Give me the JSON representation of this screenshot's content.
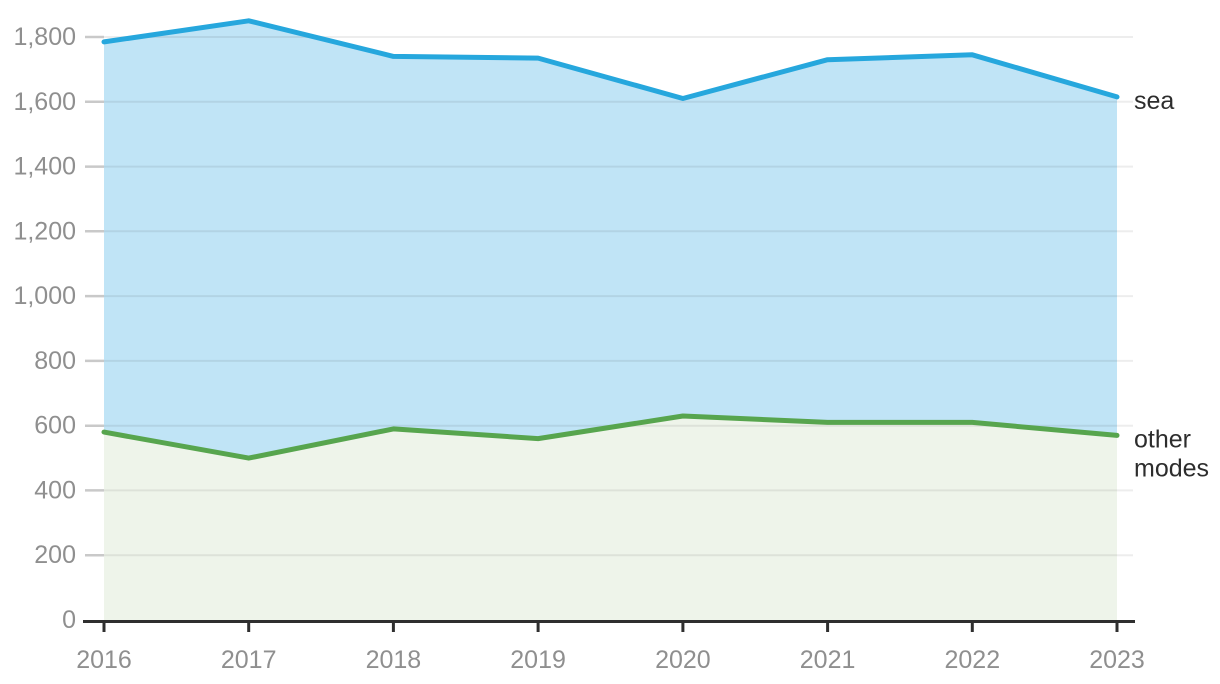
{
  "chart_data": {
    "type": "area",
    "title": "",
    "x": [
      2016,
      2017,
      2018,
      2019,
      2020,
      2021,
      2022,
      2023
    ],
    "xtick_labels": [
      "2016",
      "2017",
      "2018",
      "2019",
      "2020",
      "2021",
      "2022",
      "2023"
    ],
    "series": [
      {
        "name": "sea",
        "label_lines": [
          "sea"
        ],
        "values": [
          1785,
          1850,
          1740,
          1735,
          1610,
          1730,
          1745,
          1615
        ],
        "line_color": "#26a7dd",
        "fill_color": "#c0e4f6"
      },
      {
        "name": "other modes",
        "label_lines": [
          "other",
          "modes"
        ],
        "values": [
          580,
          500,
          590,
          560,
          630,
          610,
          610,
          570
        ],
        "line_color": "#57a54e",
        "fill_color": "#eef4ea"
      }
    ],
    "ylim": [
      0,
      1800
    ],
    "yticks": [
      0,
      200,
      400,
      600,
      800,
      1000,
      1200,
      1400,
      1600,
      1800
    ],
    "ytick_labels": [
      "0",
      "200",
      "400",
      "600",
      "800",
      "1,000",
      "1,200",
      "1,400",
      "1,600",
      "1,800"
    ],
    "grid": true,
    "legend_position": "right-annotations",
    "colors": {
      "axis": "#2f2f2f",
      "tick_label": "#8f8f8f",
      "annotation": "#2d2d2d",
      "gridline": "rgba(0,0,0,0.07)",
      "ytick_dash": "#c9c9c9"
    }
  }
}
